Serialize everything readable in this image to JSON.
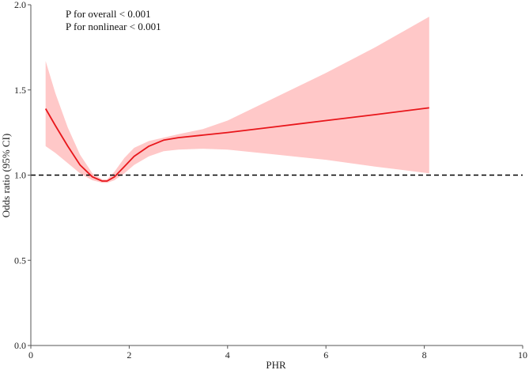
{
  "chart_data": {
    "type": "line",
    "title": "",
    "xlabel": "PHR",
    "ylabel": "Odds ratio (95% CI)",
    "xlim": [
      0,
      10
    ],
    "ylim": [
      0,
      2.0
    ],
    "x_ticks": [
      0,
      2,
      4,
      6,
      8,
      10
    ],
    "y_ticks": [
      0.0,
      0.5,
      1.0,
      1.5,
      2.0
    ],
    "x_tick_labels": [
      "0",
      "2",
      "4",
      "6",
      "8",
      "10"
    ],
    "y_tick_labels": [
      "0.0",
      "0.5",
      "1.0",
      "1.5",
      "2.0"
    ],
    "annotations": [
      "P for overall < 0.001",
      "P for nonlinear < 0.001"
    ],
    "reference_line": {
      "y": 1.0,
      "style": "dashed",
      "color": "#000000"
    },
    "grid": false,
    "line_color": "#e8161b",
    "band_color": "#ffc8c8",
    "series": [
      {
        "x": [
          0.3,
          0.5,
          0.75,
          1.0,
          1.25,
          1.45,
          1.55,
          1.7,
          1.9,
          2.1,
          2.4,
          2.7,
          3.0,
          3.5,
          4.0,
          5.0,
          6.0,
          7.0,
          8.1
        ],
        "y": [
          1.39,
          1.29,
          1.17,
          1.06,
          0.99,
          0.965,
          0.965,
          0.99,
          1.05,
          1.11,
          1.17,
          1.205,
          1.22,
          1.235,
          1.25,
          1.285,
          1.32,
          1.355,
          1.395
        ],
        "lower": [
          1.17,
          1.13,
          1.07,
          1.01,
          0.97,
          0.955,
          0.955,
          0.97,
          1.01,
          1.06,
          1.11,
          1.14,
          1.15,
          1.155,
          1.15,
          1.12,
          1.09,
          1.05,
          1.01
        ],
        "upper": [
          1.67,
          1.48,
          1.28,
          1.12,
          1.01,
          0.975,
          0.975,
          1.02,
          1.1,
          1.16,
          1.2,
          1.22,
          1.24,
          1.27,
          1.32,
          1.46,
          1.6,
          1.75,
          1.93
        ]
      }
    ]
  }
}
